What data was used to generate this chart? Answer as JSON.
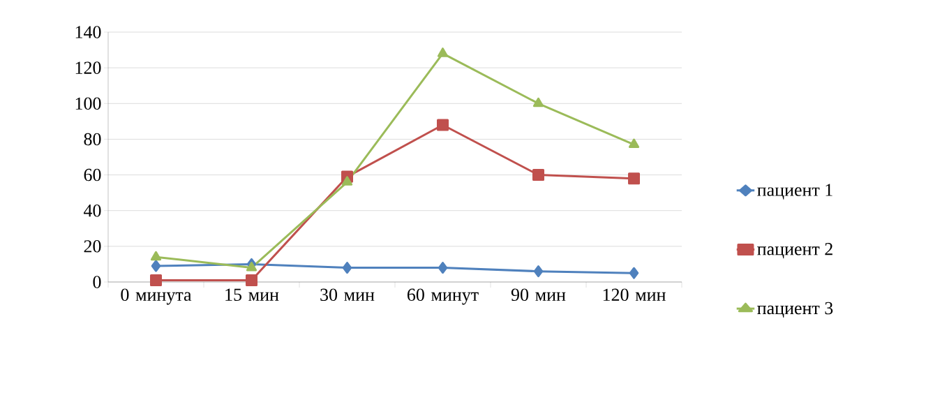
{
  "chart_data": {
    "type": "line",
    "categories": [
      "0 минута",
      "15 мин",
      "30 мин",
      "60 минут",
      "90 мин",
      "120 мин"
    ],
    "series": [
      {
        "name": "пациент 1",
        "color": "#4f81bd",
        "marker": "diamond",
        "values": [
          9,
          10,
          8,
          8,
          6,
          5
        ]
      },
      {
        "name": "пациент 2",
        "color": "#c0504d",
        "marker": "square",
        "values": [
          1,
          1,
          59,
          88,
          60,
          58
        ]
      },
      {
        "name": "пациент 3",
        "color": "#9bbb59",
        "marker": "triangle",
        "values": [
          14,
          8,
          56,
          128,
          100,
          77
        ]
      }
    ],
    "ylim": [
      0,
      140
    ],
    "yticks": [
      0,
      20,
      40,
      60,
      80,
      100,
      120,
      140
    ],
    "grid": "y",
    "legend": "right",
    "line_style": "solid"
  }
}
